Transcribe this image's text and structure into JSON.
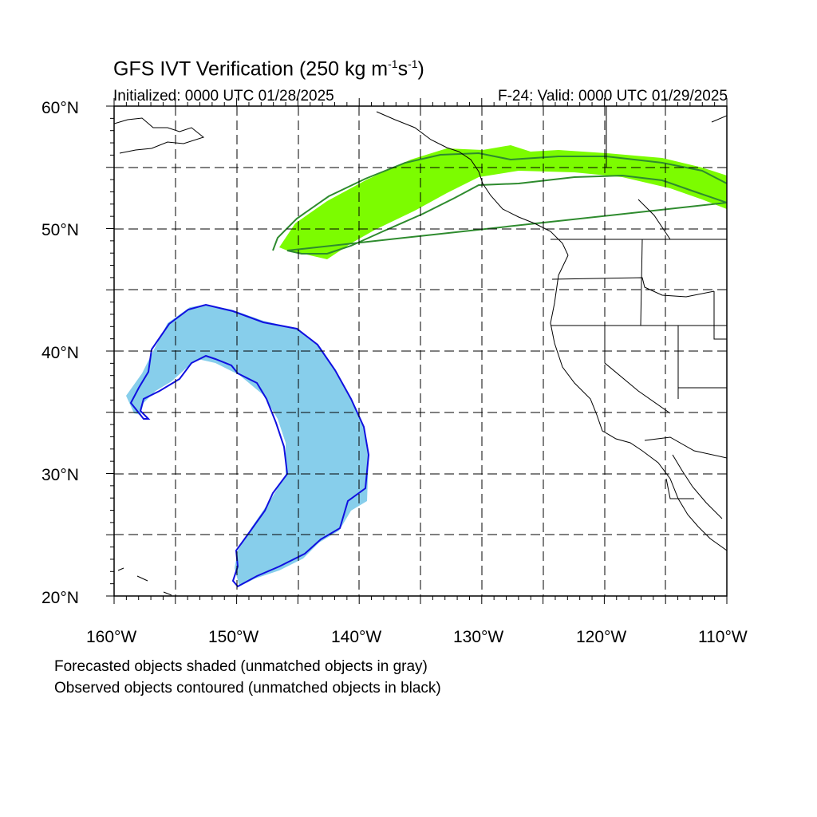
{
  "title_main": "GFS IVT Verification (250 kg m",
  "title_sup1": "-1",
  "title_mid": "s",
  "title_sup2": "-1",
  "title_end": ")",
  "initialized": "Initialized: 0000 UTC 01/28/2025",
  "valid": "F-24: Valid: 0000 UTC 01/29/2025",
  "footer_line1": "Forecasted objects shaded (unmatched objects in gray)",
  "footer_line2": "Observed objects contoured (unmatched objects in black)",
  "lat_labels": [
    "20°N",
    "30°N",
    "40°N",
    "50°N",
    "60°N"
  ],
  "lon_labels": [
    "160°W",
    "150°W",
    "140°W",
    "130°W",
    "120°W",
    "110°W"
  ],
  "colors": {
    "forecast_green": "#7cfc00",
    "observed_green": "#2e8b2e",
    "forecast_blue": "#87ceeb",
    "observed_blue": "#1010e0"
  }
}
